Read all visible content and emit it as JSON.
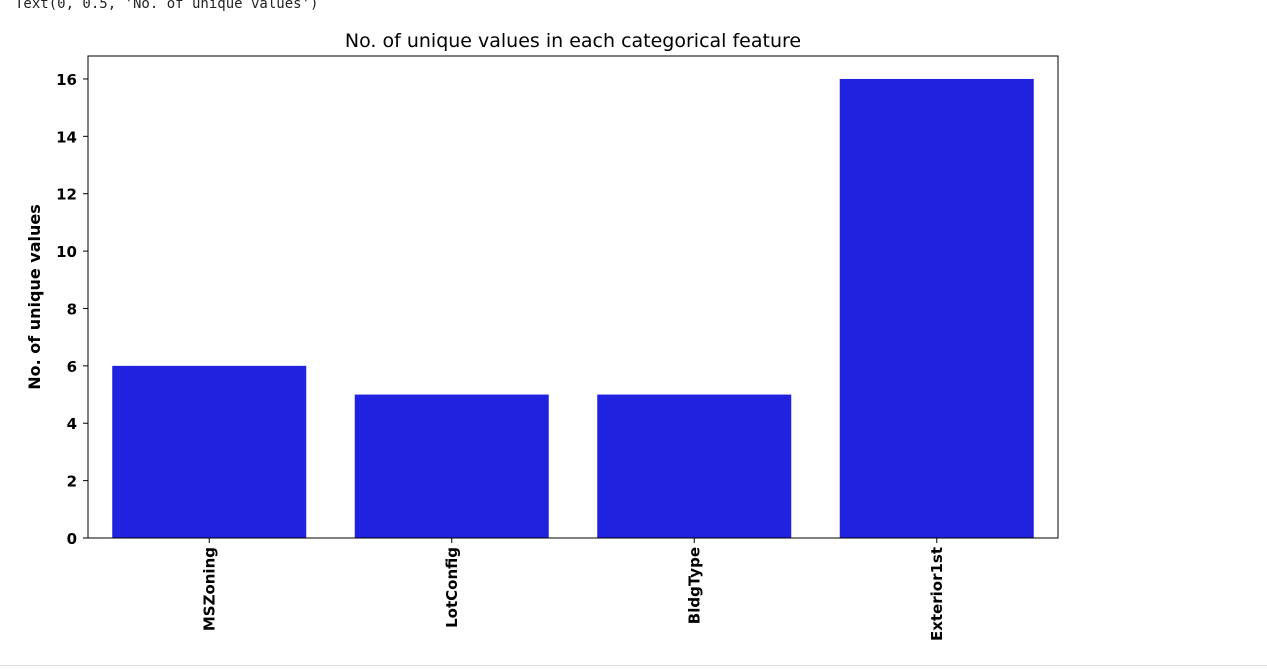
{
  "output": {
    "text": "Text(0, 0.5, 'No. of unique values')"
  },
  "chart_data": {
    "type": "bar",
    "title": "No. of unique values in each categorical feature",
    "xlabel": "",
    "ylabel": "No. of unique values",
    "categories": [
      "MSZoning",
      "LotConfig",
      "BldgType",
      "Exterior1st"
    ],
    "values": [
      6,
      5,
      5,
      16
    ],
    "ylim": [
      0,
      16.8
    ],
    "yticks": [
      0,
      2,
      4,
      6,
      8,
      10,
      12,
      14,
      16
    ],
    "bar_color": "#2121e0",
    "grid": false,
    "legend": "none"
  }
}
